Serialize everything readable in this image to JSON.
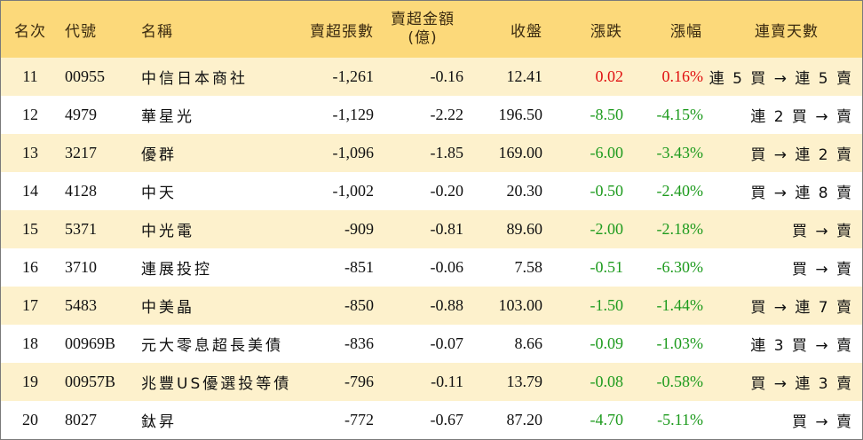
{
  "columns": [
    "名次",
    "代號",
    "名稱",
    "賣超張數",
    "賣超金額",
    "(億)",
    "收盤",
    "漲跌",
    "漲幅",
    "連賣天數"
  ],
  "rows": [
    {
      "rank": "11",
      "code": "00955",
      "name": "中信日本商社",
      "shares": "-1,261",
      "amount": "-0.16",
      "close": "12.41",
      "change": "0.02",
      "pct": "0.16%",
      "days": "連 5 買 → 連 5 賣",
      "trend": "up"
    },
    {
      "rank": "12",
      "code": "4979",
      "name": "華星光",
      "shares": "-1,129",
      "amount": "-2.22",
      "close": "196.50",
      "change": "-8.50",
      "pct": "-4.15%",
      "days": "連 2 買 → 賣",
      "trend": "down"
    },
    {
      "rank": "13",
      "code": "3217",
      "name": "優群",
      "shares": "-1,096",
      "amount": "-1.85",
      "close": "169.00",
      "change": "-6.00",
      "pct": "-3.43%",
      "days": "買 → 連 2 賣",
      "trend": "down"
    },
    {
      "rank": "14",
      "code": "4128",
      "name": "中天",
      "shares": "-1,002",
      "amount": "-0.20",
      "close": "20.30",
      "change": "-0.50",
      "pct": "-2.40%",
      "days": "買 → 連 8 賣",
      "trend": "down"
    },
    {
      "rank": "15",
      "code": "5371",
      "name": "中光電",
      "shares": "-909",
      "amount": "-0.81",
      "close": "89.60",
      "change": "-2.00",
      "pct": "-2.18%",
      "days": "買 → 賣",
      "trend": "down"
    },
    {
      "rank": "16",
      "code": "3710",
      "name": "連展投控",
      "shares": "-851",
      "amount": "-0.06",
      "close": "7.58",
      "change": "-0.51",
      "pct": "-6.30%",
      "days": "買 → 賣",
      "trend": "down"
    },
    {
      "rank": "17",
      "code": "5483",
      "name": "中美晶",
      "shares": "-850",
      "amount": "-0.88",
      "close": "103.00",
      "change": "-1.50",
      "pct": "-1.44%",
      "days": "買 → 連 7 賣",
      "trend": "down"
    },
    {
      "rank": "18",
      "code": "00969B",
      "name": "元大零息超長美債",
      "shares": "-836",
      "amount": "-0.07",
      "close": "8.66",
      "change": "-0.09",
      "pct": "-1.03%",
      "days": "連 3 買 → 賣",
      "trend": "down"
    },
    {
      "rank": "19",
      "code": "00957B",
      "name": "兆豐US優選投等債",
      "shares": "-796",
      "amount": "-0.11",
      "close": "13.79",
      "change": "-0.08",
      "pct": "-0.58%",
      "days": "買 → 連 3 賣",
      "trend": "down"
    },
    {
      "rank": "20",
      "code": "8027",
      "name": "鈦昇",
      "shares": "-772",
      "amount": "-0.67",
      "close": "87.20",
      "change": "-4.70",
      "pct": "-5.11%",
      "days": "買 → 賣",
      "trend": "down"
    }
  ],
  "colors": {
    "header_bg": "#fcd97a",
    "odd_row_bg": "#fdf1cc",
    "even_row_bg": "#ffffff",
    "up": "#e01010",
    "down": "#1e9b1e"
  }
}
